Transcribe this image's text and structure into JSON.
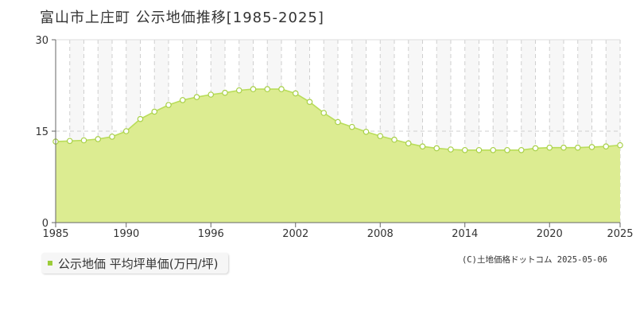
{
  "title": "富山市上庄町 公示地価推移[1985-2025]",
  "legend_label": "公示地価 平均坪単価(万円/坪)",
  "credit": "(C)土地価格ドットコム 2025-05-06",
  "colors": {
    "fill": "#dcec91",
    "line": "#b9dd5a",
    "marker_stroke": "#a8d048",
    "legend_swatch": "#9ccc3a"
  },
  "chart_data": {
    "type": "area",
    "x": [
      1985,
      1986,
      1987,
      1988,
      1989,
      1990,
      1991,
      1992,
      1993,
      1994,
      1995,
      1996,
      1997,
      1998,
      1999,
      2000,
      2001,
      2002,
      2003,
      2004,
      2005,
      2006,
      2007,
      2008,
      2009,
      2010,
      2011,
      2012,
      2013,
      2014,
      2015,
      2016,
      2017,
      2018,
      2019,
      2020,
      2021,
      2022,
      2023,
      2024,
      2025
    ],
    "series": [
      {
        "values": [
          13.3,
          13.4,
          13.5,
          13.7,
          14.1,
          15.0,
          17.0,
          18.2,
          19.3,
          20.1,
          20.6,
          21.0,
          21.3,
          21.7,
          21.9,
          21.9,
          21.9,
          21.2,
          19.8,
          18.0,
          16.5,
          15.7,
          14.9,
          14.2,
          13.6,
          13.0,
          12.5,
          12.2,
          12.0,
          11.9,
          11.9,
          11.9,
          11.9,
          11.9,
          12.2,
          12.3,
          12.3,
          12.3,
          12.4,
          12.5,
          12.7
        ]
      }
    ],
    "xlim": [
      1985,
      2025
    ],
    "ylim": [
      0,
      30
    ],
    "y_ticks": [
      "0",
      "15",
      "30"
    ],
    "x_ticks": [
      "1985",
      "1990",
      "1996",
      "2002",
      "2008",
      "2014",
      "2020",
      "2025"
    ],
    "grid": true
  }
}
